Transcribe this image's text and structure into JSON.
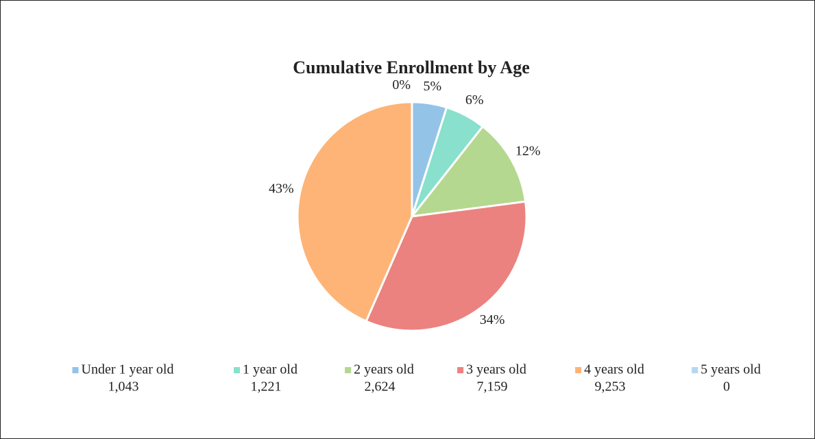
{
  "chart_data": {
    "type": "pie",
    "title": "Cumulative Enrollment by Age",
    "categories": [
      "Under 1 year old",
      "1 year old",
      "2 years old",
      "3 years old",
      "4 years old",
      "5 years old"
    ],
    "values": [
      4.9,
      5.7,
      12.3,
      33.6,
      43.4,
      0
    ],
    "value_labels": [
      "5%",
      "6%",
      "12%",
      "34%",
      "43%",
      "0%"
    ],
    "counts": [
      1043,
      1221,
      2624,
      7159,
      9253,
      0
    ],
    "count_labels": [
      "1,043",
      "1,221",
      "2,624",
      "7,159",
      "9,253",
      "0"
    ],
    "colors": [
      "#94c3e8",
      "#88e0cd",
      "#b4d88f",
      "#eb827f",
      "#fdb476",
      "#b7d6f0"
    ],
    "legend": "bottom"
  }
}
